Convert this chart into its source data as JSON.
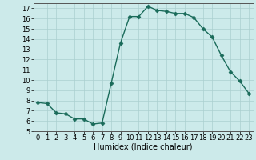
{
  "x": [
    0,
    1,
    2,
    3,
    4,
    5,
    6,
    7,
    8,
    9,
    10,
    11,
    12,
    13,
    14,
    15,
    16,
    17,
    18,
    19,
    20,
    21,
    22,
    23
  ],
  "y": [
    7.8,
    7.7,
    6.8,
    6.7,
    6.2,
    6.2,
    5.7,
    5.8,
    9.7,
    13.6,
    16.2,
    16.2,
    17.2,
    16.8,
    16.7,
    16.5,
    16.5,
    16.1,
    15.0,
    14.2,
    12.4,
    10.8,
    9.9,
    8.7
  ],
  "line_color": "#1a6b5a",
  "marker": "D",
  "marker_size": 2.5,
  "bg_color": "#cceaea",
  "grid_color": "#aacfcf",
  "xlabel": "Humidex (Indice chaleur)",
  "xlim": [
    -0.5,
    23.5
  ],
  "ylim": [
    5,
    17.5
  ],
  "yticks": [
    5,
    6,
    7,
    8,
    9,
    10,
    11,
    12,
    13,
    14,
    15,
    16,
    17
  ],
  "xticks": [
    0,
    1,
    2,
    3,
    4,
    5,
    6,
    7,
    8,
    9,
    10,
    11,
    12,
    13,
    14,
    15,
    16,
    17,
    18,
    19,
    20,
    21,
    22,
    23
  ],
  "xlabel_fontsize": 7,
  "tick_fontsize": 6
}
